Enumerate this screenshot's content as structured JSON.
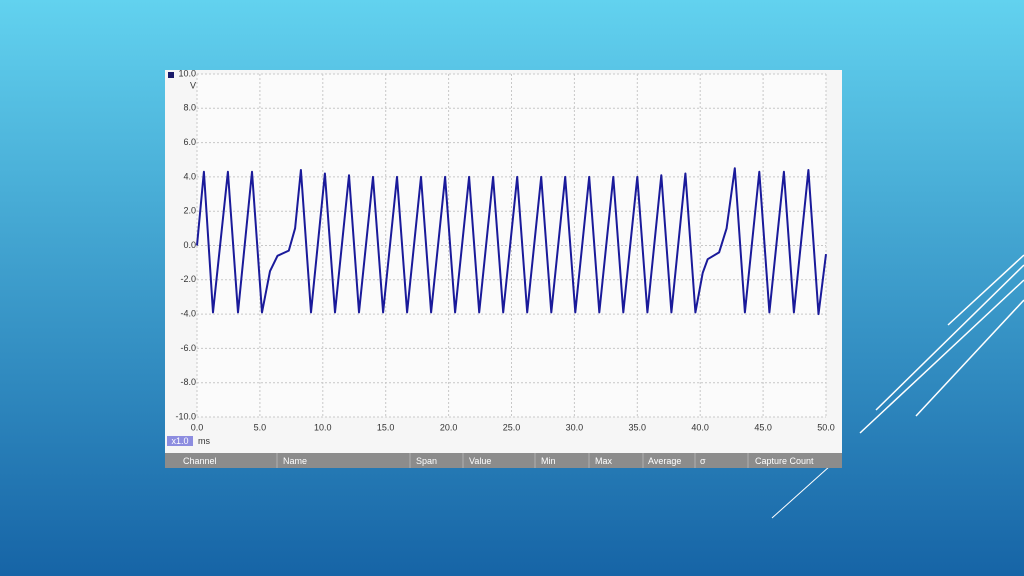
{
  "chart_data": {
    "type": "line",
    "ylabel": "V",
    "xlabel": "ms",
    "zoom_label": "x1.0",
    "color": "#1a1a9a",
    "xlim": [
      0,
      50
    ],
    "xticks": [
      {
        "value": 0,
        "label": "0.0"
      },
      {
        "value": 5,
        "label": "5.0"
      },
      {
        "value": 10,
        "label": "10.0"
      },
      {
        "value": 15,
        "label": "15.0"
      },
      {
        "value": 20,
        "label": "20.0"
      },
      {
        "value": 25,
        "label": "25.0"
      },
      {
        "value": 30,
        "label": "30.0"
      },
      {
        "value": 35,
        "label": "35.0"
      },
      {
        "value": 40,
        "label": "40.0"
      },
      {
        "value": 45,
        "label": "45.0"
      },
      {
        "value": 50,
        "label": "50.0"
      }
    ],
    "ylim": [
      -10,
      10
    ],
    "yticks": [
      {
        "value": 10,
        "label": "10.0"
      },
      {
        "value": 8,
        "label": "8.0"
      },
      {
        "value": 6,
        "label": "6.0"
      },
      {
        "value": 4,
        "label": "4.0"
      },
      {
        "value": 2,
        "label": "2.0"
      },
      {
        "value": 0,
        "label": "0.0"
      },
      {
        "value": -2,
        "label": "-2.0"
      },
      {
        "value": -4,
        "label": "-4.0"
      },
      {
        "value": -6,
        "label": "-6.0"
      },
      {
        "value": -8,
        "label": "-8.0"
      },
      {
        "value": -10,
        "label": "-10.0"
      }
    ],
    "grid": true,
    "x": [
      0,
      0.55,
      1.27,
      2.46,
      3.26,
      4.37,
      5.17,
      5.8,
      6.4,
      7.3,
      7.8,
      8.26,
      9.06,
      10.17,
      10.97,
      12.08,
      12.88,
      13.99,
      14.79,
      15.9,
      16.7,
      17.81,
      18.61,
      19.72,
      20.52,
      21.63,
      22.43,
      23.54,
      24.34,
      25.45,
      26.25,
      27.36,
      28.16,
      29.27,
      30.07,
      31.18,
      31.98,
      33.09,
      33.89,
      35.0,
      35.8,
      36.91,
      37.71,
      38.82,
      39.62,
      40.2,
      40.6,
      41.5,
      42.1,
      42.75,
      43.55,
      44.7,
      45.5,
      46.65,
      47.45,
      48.6,
      49.4,
      50.0
    ],
    "values": [
      0,
      4.3,
      -3.9,
      4.3,
      -3.9,
      4.3,
      -3.9,
      -1.5,
      -0.6,
      -0.3,
      1.0,
      4.4,
      -3.9,
      4.2,
      -3.9,
      4.1,
      -3.9,
      4.0,
      -3.9,
      4.0,
      -3.9,
      4.0,
      -3.9,
      4.0,
      -3.9,
      4.0,
      -3.9,
      4.0,
      -3.9,
      4.0,
      -3.9,
      4.0,
      -3.9,
      4.0,
      -3.9,
      4.0,
      -3.9,
      4.0,
      -3.9,
      4.0,
      -3.9,
      4.1,
      -3.9,
      4.2,
      -3.9,
      -1.6,
      -0.8,
      -0.4,
      1.0,
      4.5,
      -3.9,
      4.3,
      -3.9,
      4.3,
      -3.9,
      4.4,
      -4.0,
      -0.5
    ]
  },
  "table_header": {
    "columns": [
      "Channel",
      "Name",
      "Span",
      "Value",
      "Min",
      "Max",
      "Average",
      "σ",
      "Capture Count"
    ]
  }
}
